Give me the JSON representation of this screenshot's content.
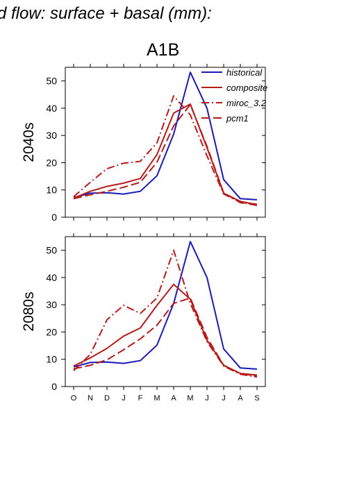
{
  "page": {
    "title": "d flow: surface + basal (mm):",
    "scenario": "A1B"
  },
  "chart_data": [
    {
      "type": "line",
      "panel": "2040s",
      "ylabel": "2040s",
      "x": [
        "O",
        "N",
        "D",
        "J",
        "F",
        "M",
        "A",
        "M",
        "J",
        "J",
        "A",
        "S"
      ],
      "ylim": [
        0,
        55
      ],
      "yticks": [
        0,
        10,
        20,
        30,
        40,
        50
      ],
      "legend": "top-right",
      "series": [
        {
          "name": "historical",
          "color": "#1a1ab8",
          "dash": "solid",
          "values": [
            7.2,
            8.8,
            9.0,
            8.5,
            9.5,
            15.2,
            30.5,
            53.2,
            40.0,
            13.8,
            6.8,
            6.4
          ]
        },
        {
          "name": "composite",
          "color": "#b81a1a",
          "dash": "solid",
          "values": [
            7.0,
            9.5,
            11.3,
            12.5,
            14.2,
            23.0,
            38.2,
            41.5,
            25.5,
            8.8,
            5.8,
            4.6
          ]
        },
        {
          "name": "miroc_3.2",
          "color": "#b81a1a",
          "dash": "dashdot",
          "values": [
            7.5,
            12.8,
            17.8,
            19.8,
            20.5,
            27.3,
            44.5,
            37.5,
            22.5,
            8.5,
            5.5,
            4.3
          ]
        },
        {
          "name": "pcm1",
          "color": "#b81a1a",
          "dash": "dash",
          "values": [
            6.8,
            8.2,
            9.5,
            11.0,
            12.8,
            20.2,
            33.5,
            41.3,
            26.0,
            9.0,
            5.3,
            4.8
          ]
        }
      ]
    },
    {
      "type": "line",
      "panel": "2080s",
      "ylabel": "2080s",
      "x": [
        "O",
        "N",
        "D",
        "J",
        "F",
        "M",
        "A",
        "M",
        "J",
        "J",
        "A",
        "S"
      ],
      "ylim": [
        0,
        55
      ],
      "yticks": [
        0,
        10,
        20,
        30,
        40,
        50
      ],
      "series": [
        {
          "name": "historical",
          "color": "#1a1ab8",
          "dash": "solid",
          "values": [
            7.2,
            8.8,
            9.0,
            8.5,
            9.5,
            15.2,
            30.5,
            53.2,
            40.0,
            13.8,
            6.8,
            6.4
          ]
        },
        {
          "name": "composite",
          "color": "#b81a1a",
          "dash": "solid",
          "values": [
            7.5,
            10.5,
            14.0,
            18.5,
            21.5,
            29.8,
            37.5,
            32.0,
            17.0,
            7.8,
            4.8,
            4.2
          ]
        },
        {
          "name": "miroc_3.2",
          "color": "#b81a1a",
          "dash": "dashdot",
          "values": [
            5.8,
            11.8,
            24.5,
            29.8,
            26.8,
            32.5,
            50.0,
            30.5,
            16.5,
            7.5,
            4.5,
            3.5
          ]
        },
        {
          "name": "pcm1",
          "color": "#b81a1a",
          "dash": "dash",
          "values": [
            6.5,
            7.8,
            9.8,
            13.5,
            17.5,
            22.5,
            30.5,
            32.5,
            18.0,
            7.8,
            4.8,
            3.8
          ]
        }
      ]
    }
  ]
}
